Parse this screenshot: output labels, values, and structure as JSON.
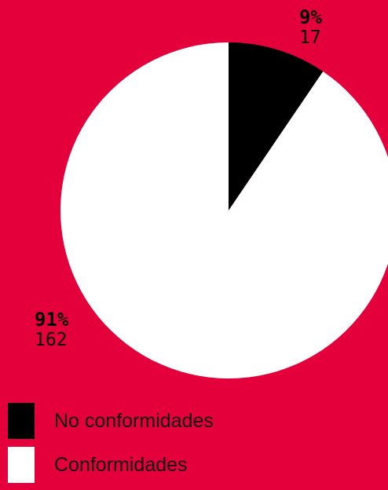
{
  "colors": {
    "background": "#e4003a",
    "text": "#111111"
  },
  "chart_data": {
    "type": "pie",
    "categories": [
      "No conformidades",
      "Conformidades"
    ],
    "values": [
      17,
      162
    ],
    "percent_labels": [
      "9%",
      "91%"
    ],
    "count_labels": [
      "17",
      "162"
    ],
    "colors": [
      "#000000",
      "#ffffff"
    ],
    "legend_position": "bottom-left"
  },
  "legend": {
    "items": [
      {
        "label": "No conformidades",
        "color": "#000000"
      },
      {
        "label": "Conformidades",
        "color": "#ffffff"
      }
    ]
  }
}
